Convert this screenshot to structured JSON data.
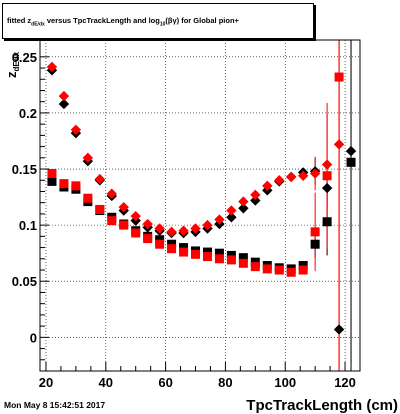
{
  "chart_data": {
    "type": "scatter",
    "title": "fitted  z_{dEdx} versus TpcTrackLength and log_{10}(βγ) for Global pion+",
    "title_display": "fitted  z",
    "title_sub": "dE/dx",
    "title_rest": "  versus TpcTrackLength and log",
    "title_sub2": "10",
    "title_end": "(βγ) for Global pion+",
    "xlabel": "TpcTrackLength (cm)",
    "ylabel": "z_{dEdx}",
    "ylabel_display": "z",
    "ylabel_sub": "dEdx",
    "xlim": [
      18,
      125
    ],
    "ylim": [
      -0.03,
      0.265
    ],
    "x_ticks": [
      20,
      40,
      60,
      80,
      100,
      120
    ],
    "y_ticks": [
      0,
      0.05,
      0.1,
      0.15,
      0.2,
      0.25
    ],
    "y_tick_labels": [
      "0",
      "0.05",
      "0.1",
      "0.15",
      "0.2",
      "0.25"
    ],
    "grid": true,
    "timestamp": "Mon May  8 15:42:51 2017",
    "series": [
      {
        "marker": "diamond",
        "color": "#000000",
        "points": [
          {
            "x": 22,
            "y": 0.238
          },
          {
            "x": 26,
            "y": 0.208
          },
          {
            "x": 30,
            "y": 0.182
          },
          {
            "x": 34,
            "y": 0.157
          },
          {
            "x": 38,
            "y": 0.14
          },
          {
            "x": 42,
            "y": 0.126
          },
          {
            "x": 46,
            "y": 0.113
          },
          {
            "x": 50,
            "y": 0.104
          },
          {
            "x": 54,
            "y": 0.098
          },
          {
            "x": 58,
            "y": 0.095
          },
          {
            "x": 62,
            "y": 0.093
          },
          {
            "x": 66,
            "y": 0.093
          },
          {
            "x": 70,
            "y": 0.094
          },
          {
            "x": 74,
            "y": 0.097
          },
          {
            "x": 78,
            "y": 0.101
          },
          {
            "x": 82,
            "y": 0.107
          },
          {
            "x": 86,
            "y": 0.115
          },
          {
            "x": 90,
            "y": 0.122
          },
          {
            "x": 94,
            "y": 0.131
          },
          {
            "x": 98,
            "y": 0.139
          },
          {
            "x": 102,
            "y": 0.143
          },
          {
            "x": 106,
            "y": 0.147
          },
          {
            "x": 110,
            "y": 0.148,
            "err": 0.012
          },
          {
            "x": 114,
            "y": 0.133,
            "err": 0.012
          },
          {
            "x": 118,
            "y": 0.007,
            "err": 0.26
          },
          {
            "x": 122,
            "y": 0.166,
            "err": 0.22
          }
        ]
      },
      {
        "marker": "square",
        "color": "#000000",
        "points": [
          {
            "x": 22,
            "y": 0.139
          },
          {
            "x": 26,
            "y": 0.134
          },
          {
            "x": 30,
            "y": 0.132
          },
          {
            "x": 34,
            "y": 0.121
          },
          {
            "x": 38,
            "y": 0.113
          },
          {
            "x": 42,
            "y": 0.107
          },
          {
            "x": 46,
            "y": 0.101
          },
          {
            "x": 50,
            "y": 0.095
          },
          {
            "x": 54,
            "y": 0.09
          },
          {
            "x": 58,
            "y": 0.087
          },
          {
            "x": 62,
            "y": 0.083
          },
          {
            "x": 66,
            "y": 0.08
          },
          {
            "x": 70,
            "y": 0.077
          },
          {
            "x": 74,
            "y": 0.076
          },
          {
            "x": 78,
            "y": 0.075
          },
          {
            "x": 82,
            "y": 0.073
          },
          {
            "x": 86,
            "y": 0.071
          },
          {
            "x": 90,
            "y": 0.067
          },
          {
            "x": 94,
            "y": 0.064
          },
          {
            "x": 98,
            "y": 0.062
          },
          {
            "x": 102,
            "y": 0.061
          },
          {
            "x": 106,
            "y": 0.064
          },
          {
            "x": 110,
            "y": 0.083,
            "err": 0.012
          },
          {
            "x": 114,
            "y": 0.103,
            "err": 0.03
          },
          {
            "x": 122,
            "y": 0.156,
            "err": 0.18
          }
        ]
      },
      {
        "marker": "diamond",
        "color": "#ff0000",
        "points": [
          {
            "x": 22,
            "y": 0.241
          },
          {
            "x": 26,
            "y": 0.215
          },
          {
            "x": 30,
            "y": 0.185
          },
          {
            "x": 34,
            "y": 0.16
          },
          {
            "x": 38,
            "y": 0.141
          },
          {
            "x": 42,
            "y": 0.128
          },
          {
            "x": 46,
            "y": 0.116
          },
          {
            "x": 50,
            "y": 0.108
          },
          {
            "x": 54,
            "y": 0.101
          },
          {
            "x": 58,
            "y": 0.097
          },
          {
            "x": 62,
            "y": 0.094
          },
          {
            "x": 66,
            "y": 0.095
          },
          {
            "x": 70,
            "y": 0.097
          },
          {
            "x": 74,
            "y": 0.1
          },
          {
            "x": 78,
            "y": 0.105
          },
          {
            "x": 82,
            "y": 0.113
          },
          {
            "x": 86,
            "y": 0.121
          },
          {
            "x": 90,
            "y": 0.127
          },
          {
            "x": 94,
            "y": 0.135
          },
          {
            "x": 98,
            "y": 0.14
          },
          {
            "x": 102,
            "y": 0.143
          },
          {
            "x": 106,
            "y": 0.144
          },
          {
            "x": 110,
            "y": 0.146,
            "err": 0.015
          },
          {
            "x": 114,
            "y": 0.154,
            "err": 0.045
          },
          {
            "x": 118,
            "y": 0.172,
            "err": 0.27
          }
        ]
      },
      {
        "marker": "square",
        "color": "#ff0000",
        "points": [
          {
            "x": 22,
            "y": 0.146
          },
          {
            "x": 26,
            "y": 0.137
          },
          {
            "x": 30,
            "y": 0.135
          },
          {
            "x": 34,
            "y": 0.124
          },
          {
            "x": 38,
            "y": 0.114
          },
          {
            "x": 42,
            "y": 0.104
          },
          {
            "x": 46,
            "y": 0.1
          },
          {
            "x": 50,
            "y": 0.093
          },
          {
            "x": 54,
            "y": 0.088
          },
          {
            "x": 58,
            "y": 0.083
          },
          {
            "x": 62,
            "y": 0.079
          },
          {
            "x": 66,
            "y": 0.076
          },
          {
            "x": 70,
            "y": 0.074
          },
          {
            "x": 74,
            "y": 0.072
          },
          {
            "x": 78,
            "y": 0.07
          },
          {
            "x": 82,
            "y": 0.069
          },
          {
            "x": 86,
            "y": 0.066
          },
          {
            "x": 90,
            "y": 0.063
          },
          {
            "x": 94,
            "y": 0.061
          },
          {
            "x": 98,
            "y": 0.06
          },
          {
            "x": 102,
            "y": 0.058
          },
          {
            "x": 106,
            "y": 0.06
          },
          {
            "x": 110,
            "y": 0.094,
            "err": 0.035
          },
          {
            "x": 114,
            "y": 0.144,
            "err": 0.065
          },
          {
            "x": 118,
            "y": 0.232,
            "err": 0.26
          }
        ]
      }
    ]
  }
}
